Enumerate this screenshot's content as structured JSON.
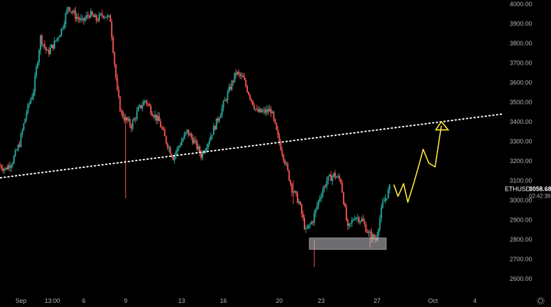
{
  "chart_data": {
    "type": "candlestick",
    "symbol": "ETHUSD",
    "last_price": "3058.68",
    "countdown": "02:42:38",
    "ylim": [
      2550,
      4030
    ],
    "y_ticks": [
      2600,
      2700,
      2800,
      2900,
      3000,
      3100,
      3200,
      3300,
      3400,
      3500,
      3600,
      3700,
      3800,
      3900,
      4000
    ],
    "y_tick_labels": [
      "2600.00",
      "2700.00",
      "2800.00",
      "2900.00",
      "3000.00",
      "3100.00",
      "3200.00",
      "3300.00",
      "3400.00",
      "3500.00",
      "3600.00",
      "3700.00",
      "3800.00",
      "3900.00",
      "4000.00"
    ],
    "x_labels": [
      {
        "text": "Sep",
        "t": 3
      },
      {
        "text": "13:00",
        "t": 7.5
      },
      {
        "text": "6",
        "t": 12
      },
      {
        "text": "9",
        "t": 18
      },
      {
        "text": "13",
        "t": 26
      },
      {
        "text": "16",
        "t": 32
      },
      {
        "text": "20",
        "t": 40
      },
      {
        "text": "23",
        "t": 46
      },
      {
        "text": "27",
        "t": 54
      },
      {
        "text": "Oct",
        "t": 62
      },
      {
        "text": "4",
        "t": 68
      }
    ],
    "x_range": [
      0,
      72
    ],
    "path": [
      [
        0,
        3180
      ],
      [
        1,
        3160
      ],
      [
        2,
        3200
      ],
      [
        3,
        3290
      ],
      [
        4,
        3450
      ],
      [
        5,
        3560
      ],
      [
        6,
        3830
      ],
      [
        7,
        3750
      ],
      [
        8,
        3800
      ],
      [
        9,
        3870
      ],
      [
        10,
        3990
      ],
      [
        11,
        3940
      ],
      [
        12,
        3910
      ],
      [
        13,
        3950
      ],
      [
        14,
        3920
      ],
      [
        15,
        3950
      ],
      [
        16,
        3920
      ],
      [
        17,
        3550
      ],
      [
        17.5,
        3450
      ],
      [
        18,
        3420
      ],
      [
        19,
        3380
      ],
      [
        20,
        3460
      ],
      [
        21,
        3510
      ],
      [
        22,
        3450
      ],
      [
        23,
        3400
      ],
      [
        24,
        3300
      ],
      [
        25,
        3220
      ],
      [
        26,
        3290
      ],
      [
        27,
        3350
      ],
      [
        28,
        3300
      ],
      [
        29,
        3230
      ],
      [
        30,
        3300
      ],
      [
        31,
        3380
      ],
      [
        32,
        3470
      ],
      [
        33,
        3560
      ],
      [
        34,
        3650
      ],
      [
        35,
        3620
      ],
      [
        36,
        3530
      ],
      [
        37,
        3450
      ],
      [
        38,
        3450
      ],
      [
        39,
        3460
      ],
      [
        40,
        3320
      ],
      [
        41,
        3200
      ],
      [
        42,
        3060
      ],
      [
        43,
        2990
      ],
      [
        44,
        2840
      ],
      [
        45,
        2900
      ],
      [
        46,
        3020
      ],
      [
        47,
        3100
      ],
      [
        48,
        3130
      ],
      [
        49,
        3100
      ],
      [
        50,
        2850
      ],
      [
        51,
        2920
      ],
      [
        52,
        2900
      ],
      [
        53,
        2830
      ],
      [
        54,
        2800
      ],
      [
        55,
        2980
      ],
      [
        56,
        3060
      ]
    ],
    "trendline": {
      "start": [
        -1,
        3110
      ],
      "end": [
        72,
        3440
      ]
    },
    "support_zone": {
      "t0": 44.3,
      "t1": 55.3,
      "y0": 2750,
      "y1": 2808
    },
    "projection": [
      [
        56.4,
        3080
      ],
      [
        57,
        3020
      ],
      [
        57.8,
        3085
      ],
      [
        58.4,
        2990
      ],
      [
        59.2,
        3080
      ],
      [
        60,
        3180
      ],
      [
        60.6,
        3260
      ],
      [
        61.4,
        3190
      ],
      [
        62.3,
        3170
      ],
      [
        63.2,
        3380
      ]
    ],
    "projection_color": "#ffeb3b",
    "up_color": "#26a69a",
    "down_color": "#ef5350",
    "line_color": "#ffffff"
  }
}
